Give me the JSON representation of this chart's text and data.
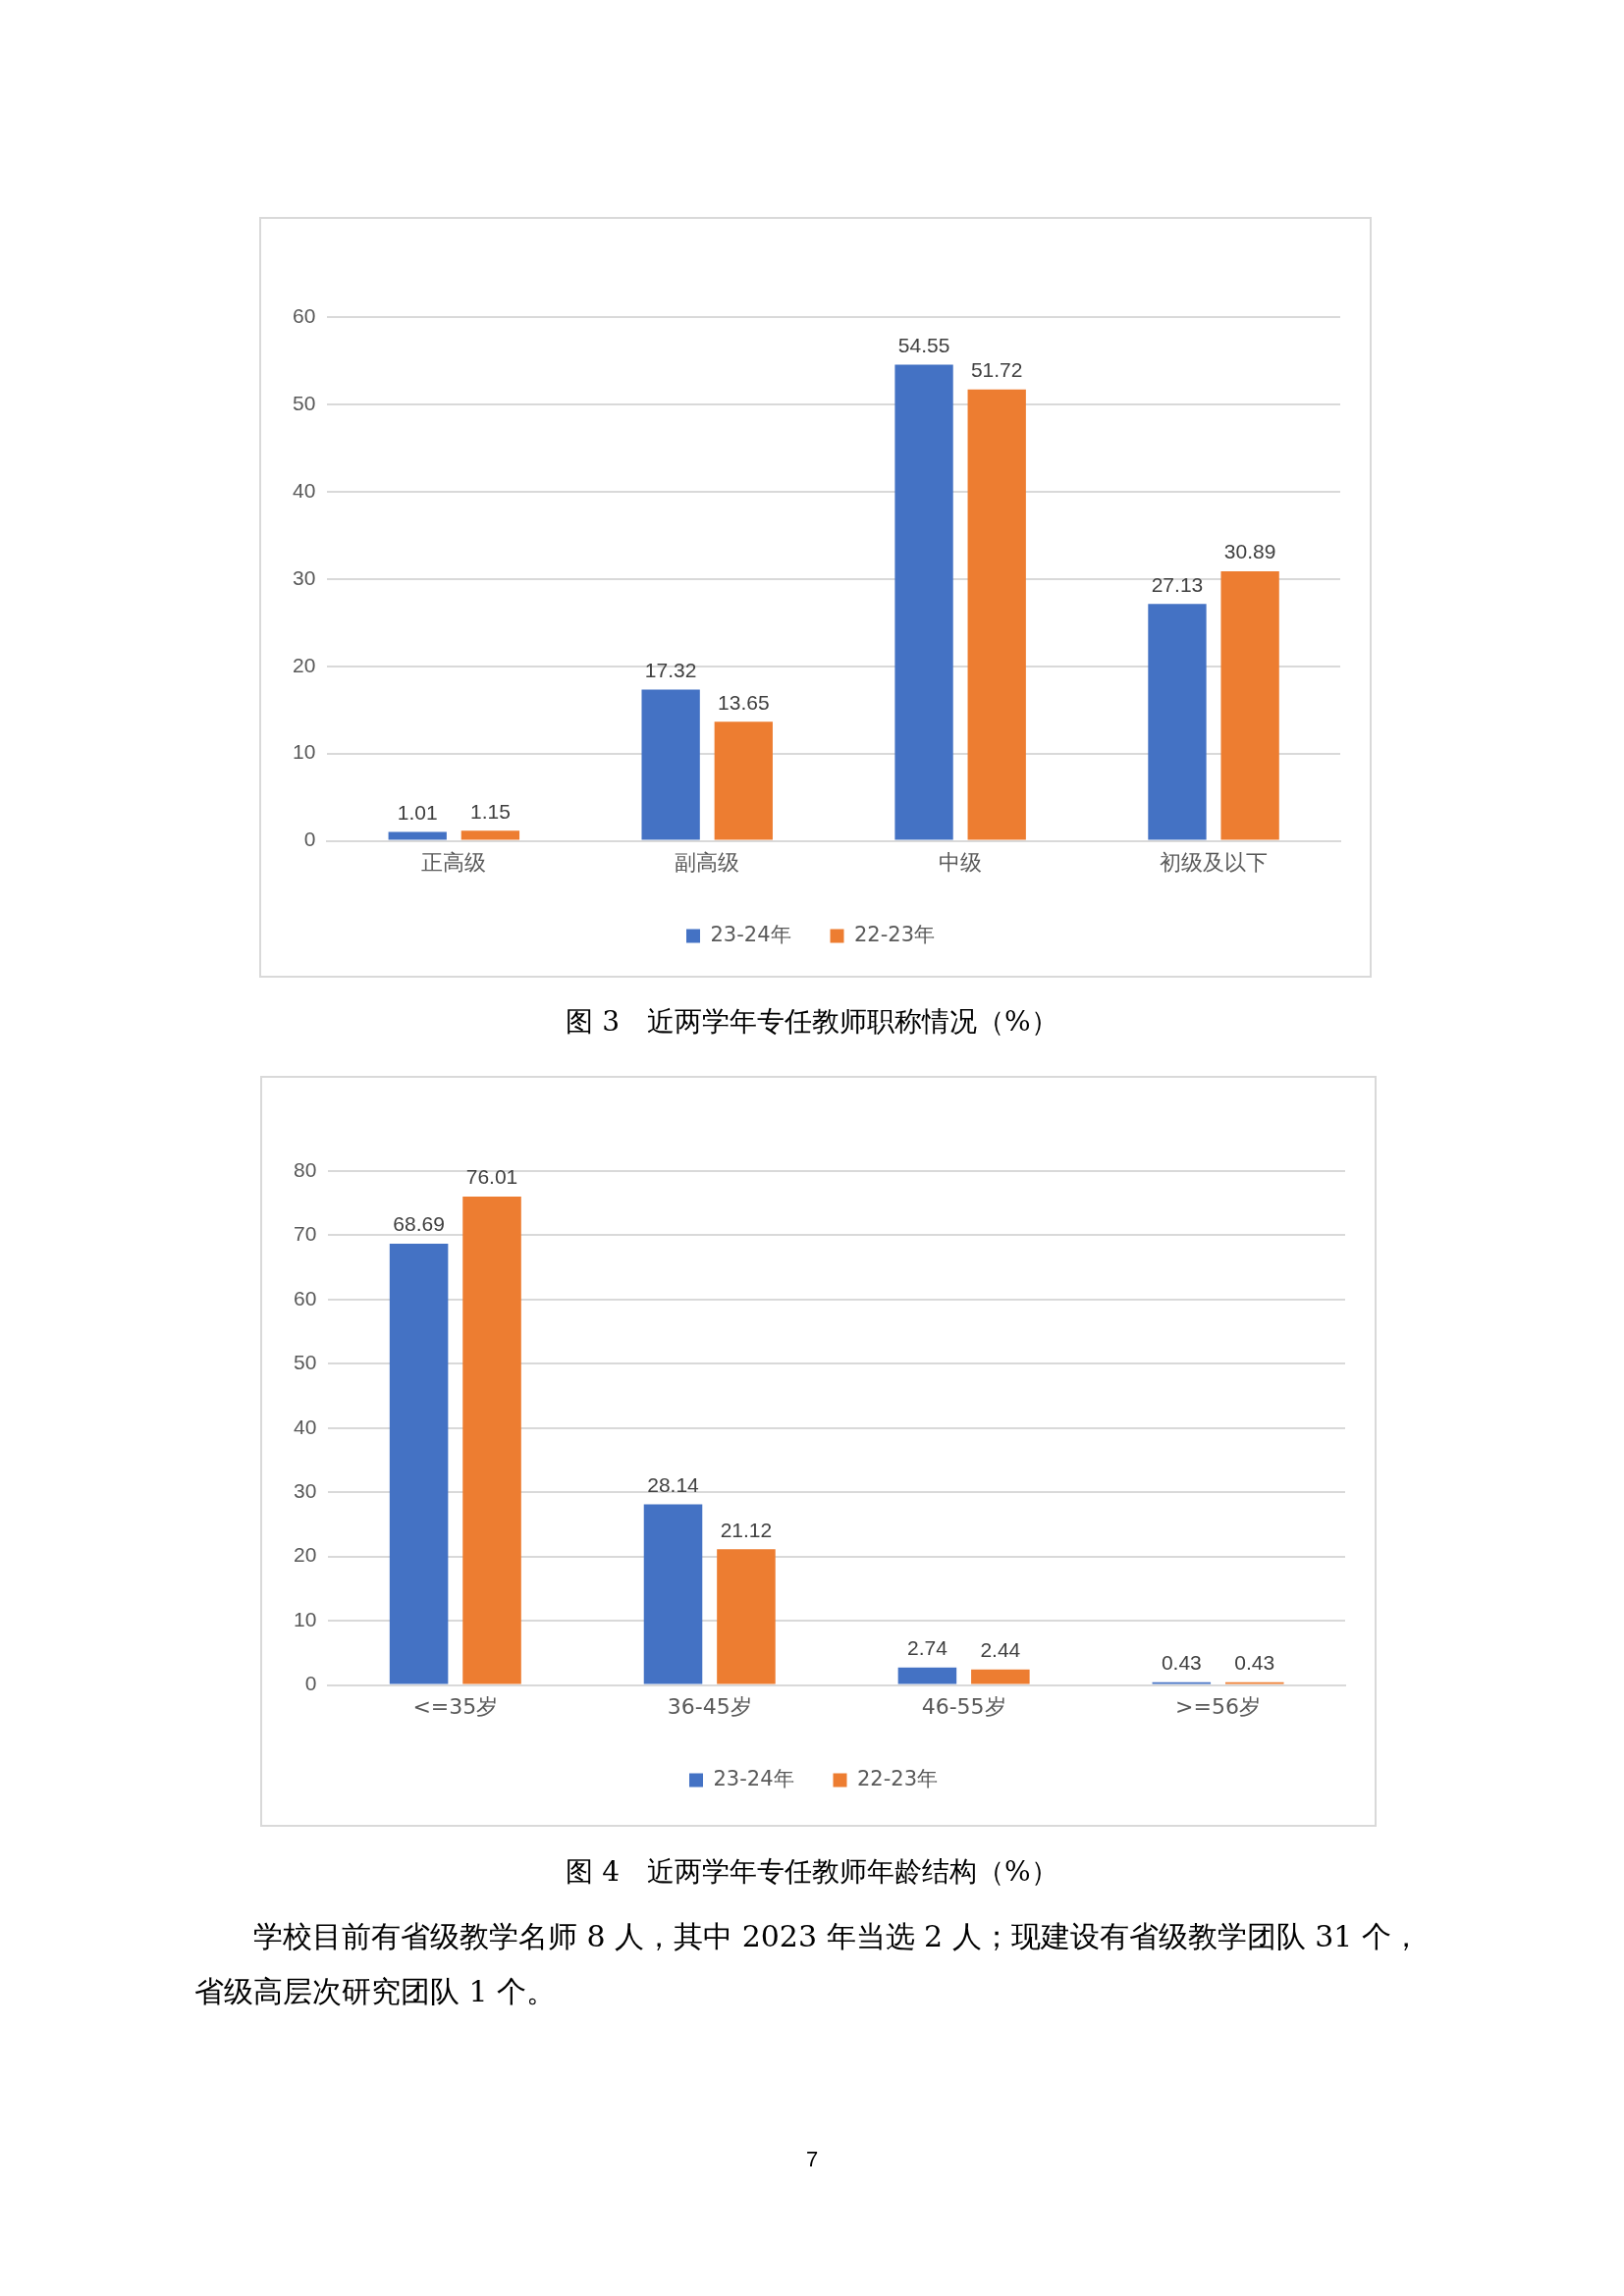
{
  "chart_data": [
    {
      "type": "bar",
      "title": "图 3　近两学年专任教师职称情况（%）",
      "categories": [
        "正高级",
        "副高级",
        "中级",
        "初级及以下"
      ],
      "series": [
        {
          "name": "23-24年",
          "color": "#4472c4",
          "values": [
            1.01,
            17.32,
            54.55,
            27.13
          ]
        },
        {
          "name": "22-23年",
          "color": "#ed7d31",
          "values": [
            1.15,
            13.65,
            51.72,
            30.89
          ]
        }
      ],
      "ylim": [
        0,
        60
      ],
      "yticks": [
        0,
        10,
        20,
        30,
        40,
        50,
        60
      ],
      "grid": "y",
      "legend": "bottom",
      "data_labels": true
    },
    {
      "type": "bar",
      "title": "图 4　近两学年专任教师年龄结构（%）",
      "categories": [
        "<=35岁",
        "36-45岁",
        "46-55岁",
        ">=56岁"
      ],
      "series": [
        {
          "name": "23-24年",
          "color": "#4472c4",
          "values": [
            68.69,
            28.14,
            2.74,
            0.43
          ]
        },
        {
          "name": "22-23年",
          "color": "#ed7d31",
          "values": [
            76.01,
            21.12,
            2.44,
            0.43
          ]
        }
      ],
      "ylim": [
        0,
        80
      ],
      "yticks": [
        0,
        10,
        20,
        30,
        40,
        50,
        60,
        70,
        80
      ],
      "grid": "y",
      "legend": "bottom",
      "data_labels": true,
      "annotations": [
        "学校目前有省级教学名师 8 人，其中 2023 年当选 2 人；现建设有省级教学团队 31 个，省级高层次研究团队 1 个。",
        "7"
      ]
    }
  ]
}
